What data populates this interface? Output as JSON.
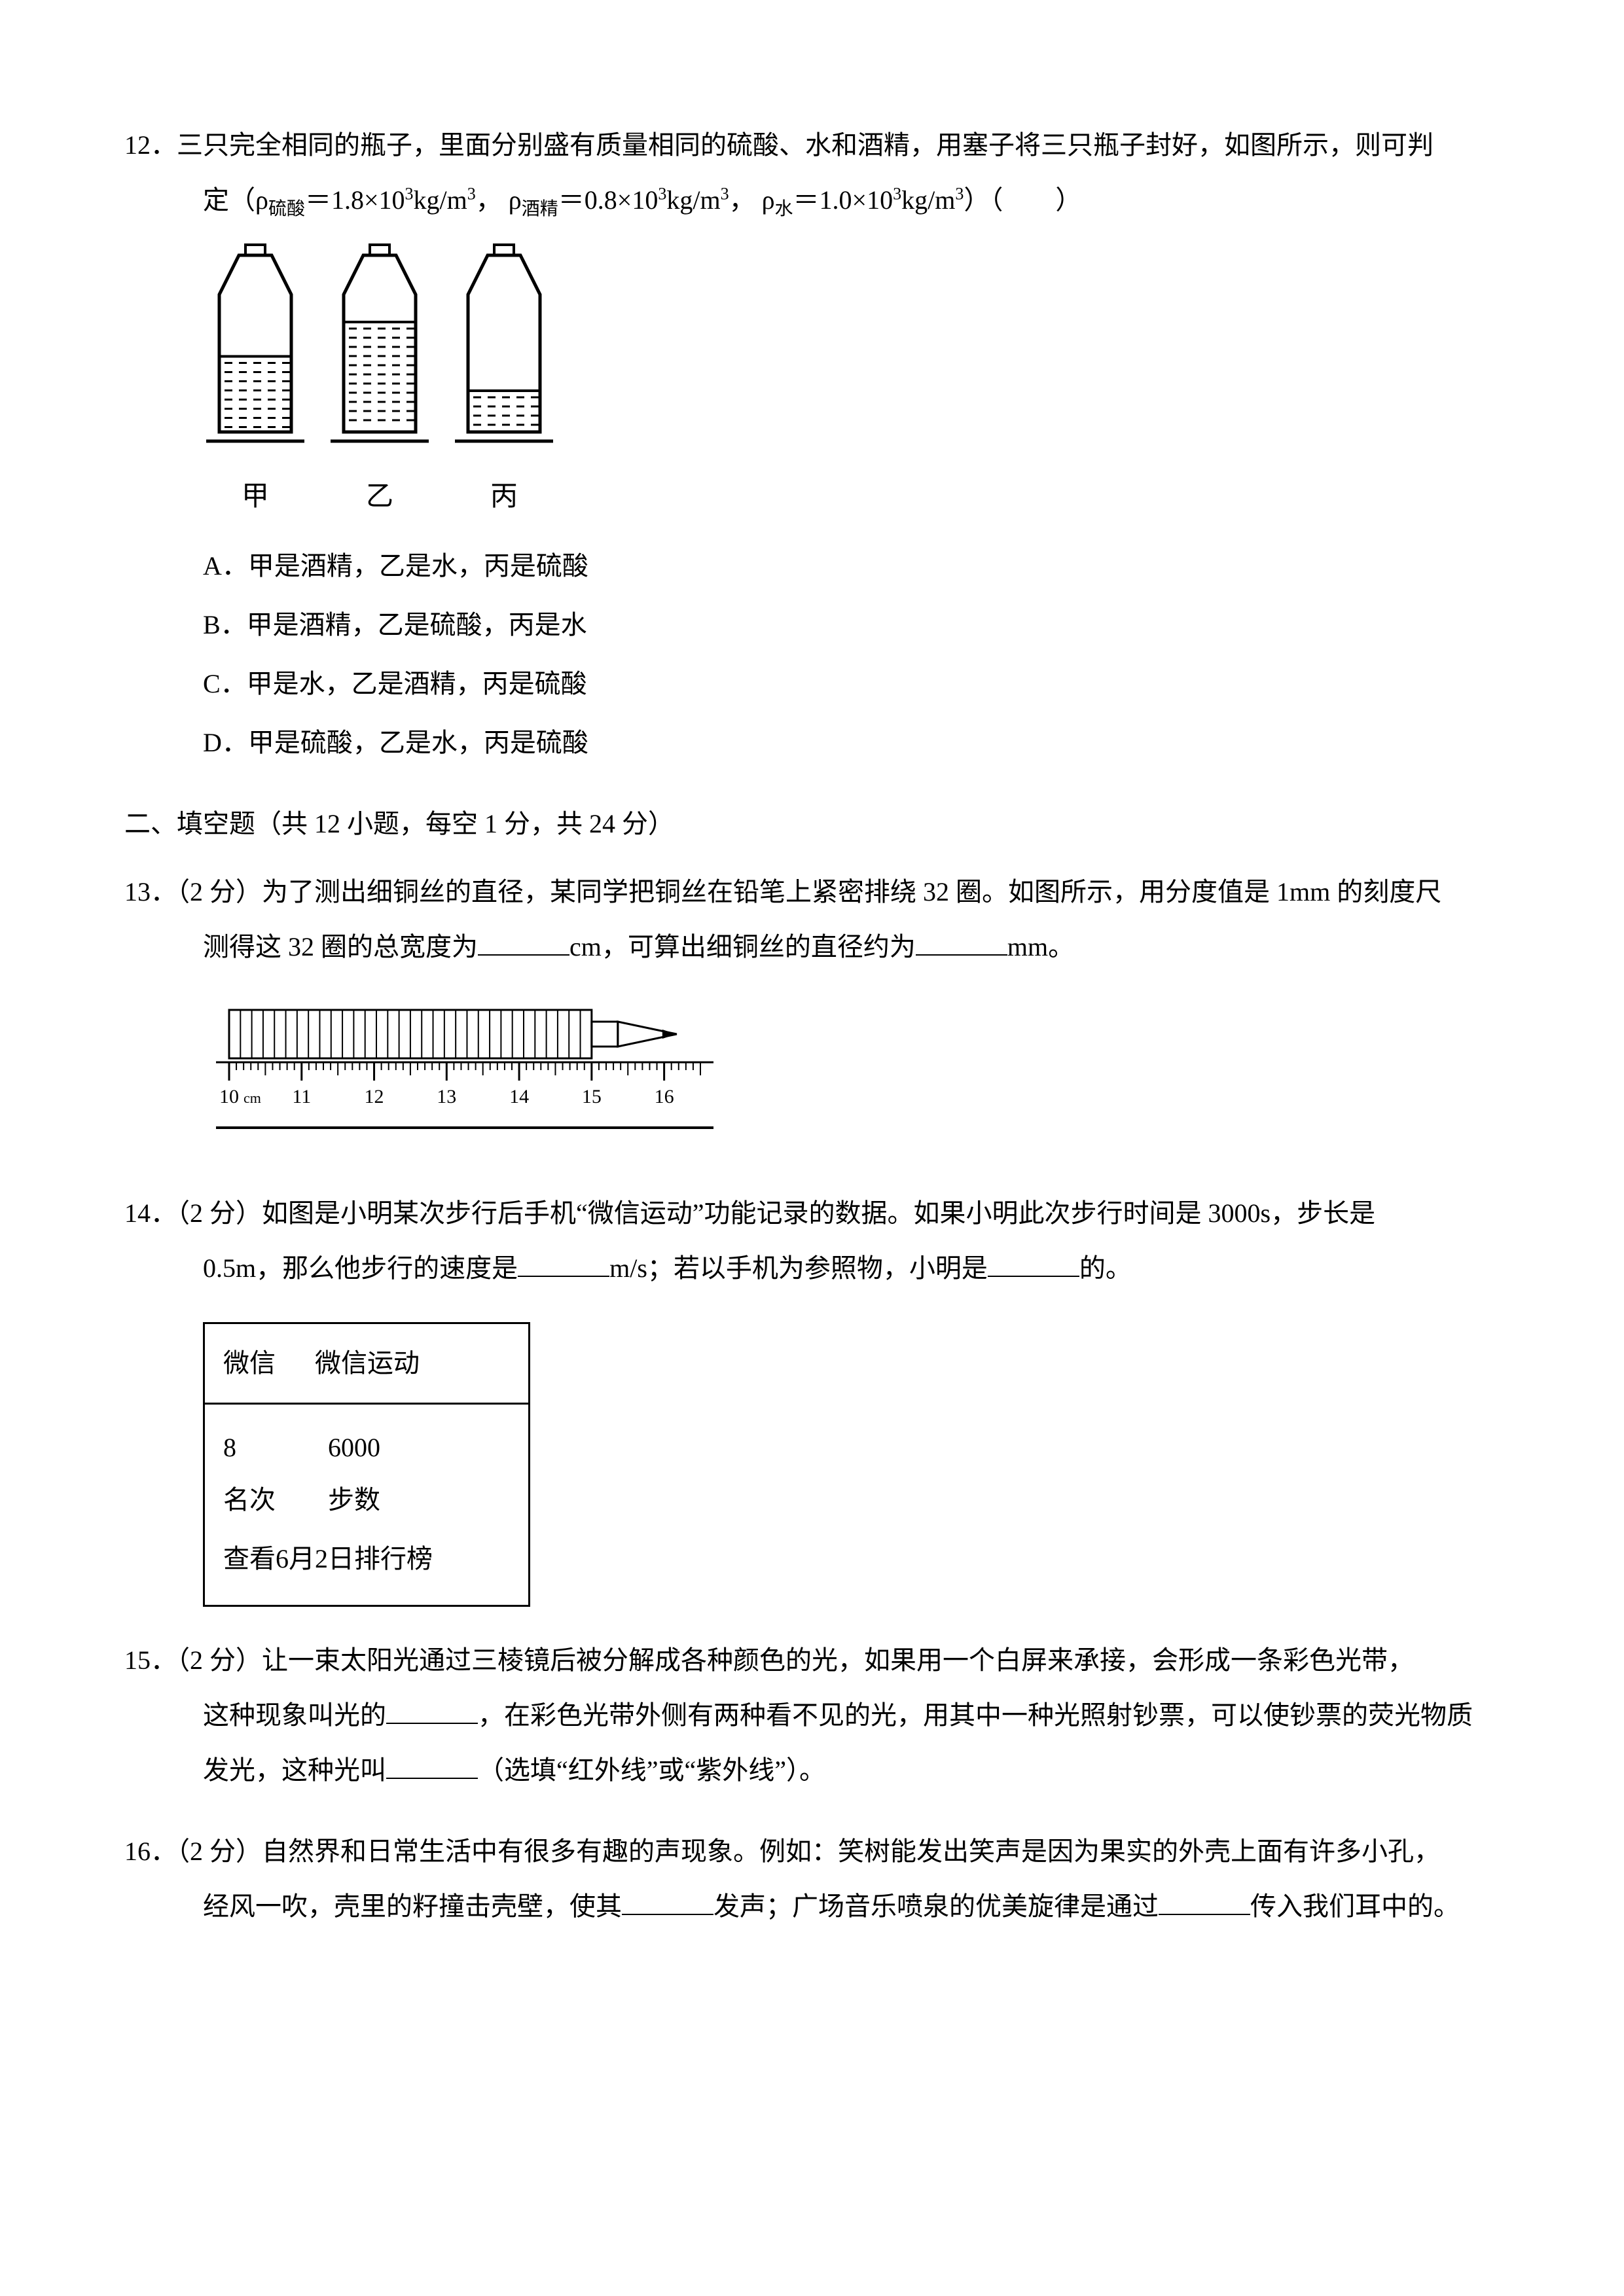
{
  "q12": {
    "number": "12．",
    "stem_line1": "三只完全相同的瓶子，里面分别盛有质量相同的硫酸、水和酒精，用塞子将三只瓶子封好，如图所示，则可判",
    "stem_line2_prefix": "定（ρ",
    "sub_h2so4": "硫酸",
    "eq1": "＝1.8×10",
    "sup3": "3",
    "unit": "kg/m",
    "comma": "，",
    "sub_alcohol": "酒精",
    "eq2": "＝0.8×10",
    "sub_water": "水",
    "eq3": "＝1.0×10",
    "paren_close": "）（　　）",
    "rho": "ρ",
    "bottles": {
      "labels": [
        "甲",
        "乙",
        "丙"
      ],
      "fill_levels": [
        0.55,
        0.8,
        0.3
      ],
      "outline": "#000000",
      "fill_pattern": "#000000",
      "bg": "#ffffff"
    },
    "options": {
      "A": "A．甲是酒精，乙是水，丙是硫酸",
      "B": "B．甲是酒精，乙是硫酸，丙是水",
      "C": "C．甲是水，乙是酒精，丙是硫酸",
      "D": "D．甲是硫酸，乙是水，丙是硫酸"
    }
  },
  "section2": "二、填空题（共 12 小题，每空 1 分，共 24 分）",
  "q13": {
    "number": "13．",
    "points": "（2 分）",
    "line1": "为了测出细铜丝的直径，某同学把铜丝在铅笔上紧密排绕 32 圈。如图所示，用分度值是 1mm 的刻度尺",
    "line2a": "测得这 32 圈的总宽度为",
    "line2b": "cm，可算出细铜丝的直径约为",
    "line2c": "mm。",
    "ruler": {
      "start": 10,
      "end": 16.5,
      "unit_label": "cm",
      "tick_labels": [
        "10",
        "11",
        "12",
        "13",
        "14",
        "15",
        "16"
      ],
      "coil_start": 10.0,
      "coil_end": 15.0,
      "color": "#000000"
    }
  },
  "q14": {
    "number": "14．",
    "points": "（2 分）",
    "line1": "如图是小明某次步行后手机“微信运动”功能记录的数据。如果小明此次步行时间是 3000s，步长是",
    "line2a": "0.5m，那么他步行的速度是",
    "line2b": "m/s；若以手机为参照物，小明是",
    "line2c": "的。",
    "phone": {
      "top_left": "微信",
      "top_right": "微信运动",
      "rank_val": "8",
      "steps_val": "6000",
      "rank_label": "名次",
      "steps_label": "步数",
      "bottom": "查看6月2日排行榜"
    }
  },
  "q15": {
    "number": "15．",
    "points": "（2 分）",
    "line1": "让一束太阳光通过三棱镜后被分解成各种颜色的光，如果用一个白屏来承接，会形成一条彩色光带，",
    "line2a": "这种现象叫光的",
    "line2b": "，在彩色光带外侧有两种看不见的光，用其中一种光照射钞票，可以使钞票的荧光物质",
    "line3a": "发光，这种光叫",
    "line3b": "（选填“红外线”或“紫外线”）。"
  },
  "q16": {
    "number": "16．",
    "points": "（2 分）",
    "line1": "自然界和日常生活中有很多有趣的声现象。例如：笑树能发出笑声是因为果实的外壳上面有许多小孔，",
    "line2a": "经风一吹，壳里的籽撞击壳壁，使其",
    "line2b": "发声；广场音乐喷泉的优美旋律是通过",
    "line2c": "传入我们耳中的。"
  }
}
